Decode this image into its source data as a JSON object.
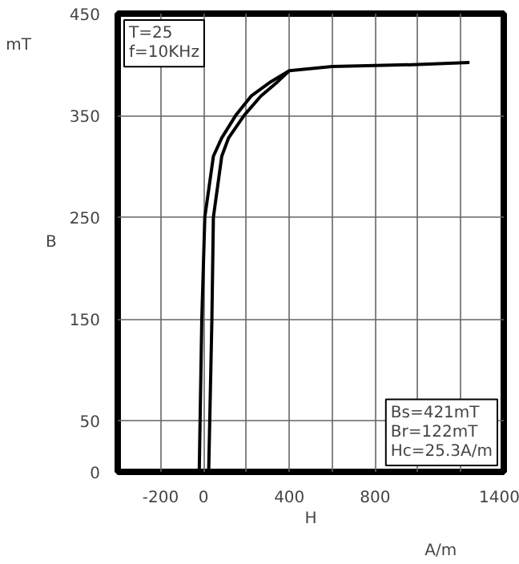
{
  "chart_data": {
    "type": "line",
    "xlabel": "H",
    "ylabel": "B",
    "xlim": [
      -400,
      1400
    ],
    "ylim": [
      0,
      450
    ],
    "xticks": [
      -200,
      0,
      {
        "value": 200,
        "label": null
      },
      400,
      {
        "value": 600,
        "label": null
      },
      800,
      {
        "value": 1000,
        "label": null
      },
      {
        "value": 1200,
        "label": null
      },
      1400
    ],
    "yticks": [
      0,
      50,
      150,
      250,
      350,
      450
    ],
    "grid": true,
    "marker": "none",
    "line_style": "solid",
    "series": [
      {
        "color": "#000000",
        "x": [
          24,
          39,
          46,
          85,
          117,
          189,
          267,
          345,
          400,
          600,
          800,
          1000,
          1240
        ],
        "values": [
          0,
          150,
          250,
          310,
          328,
          350,
          369,
          383,
          394,
          398,
          399,
          400,
          402
        ]
      },
      {
        "color": "#000000",
        "x": [
          -20,
          -8,
          6,
          46,
          85,
          150,
          222,
          313,
          400
        ],
        "values": [
          0,
          150,
          250,
          310,
          328,
          350,
          369,
          383,
          394
        ]
      }
    ],
    "annotations": [
      "T=25\nf=10KHz",
      "Bs=421mT\nBr=122mT\nHc=25.3A/m",
      "mT",
      "A/m"
    ]
  }
}
